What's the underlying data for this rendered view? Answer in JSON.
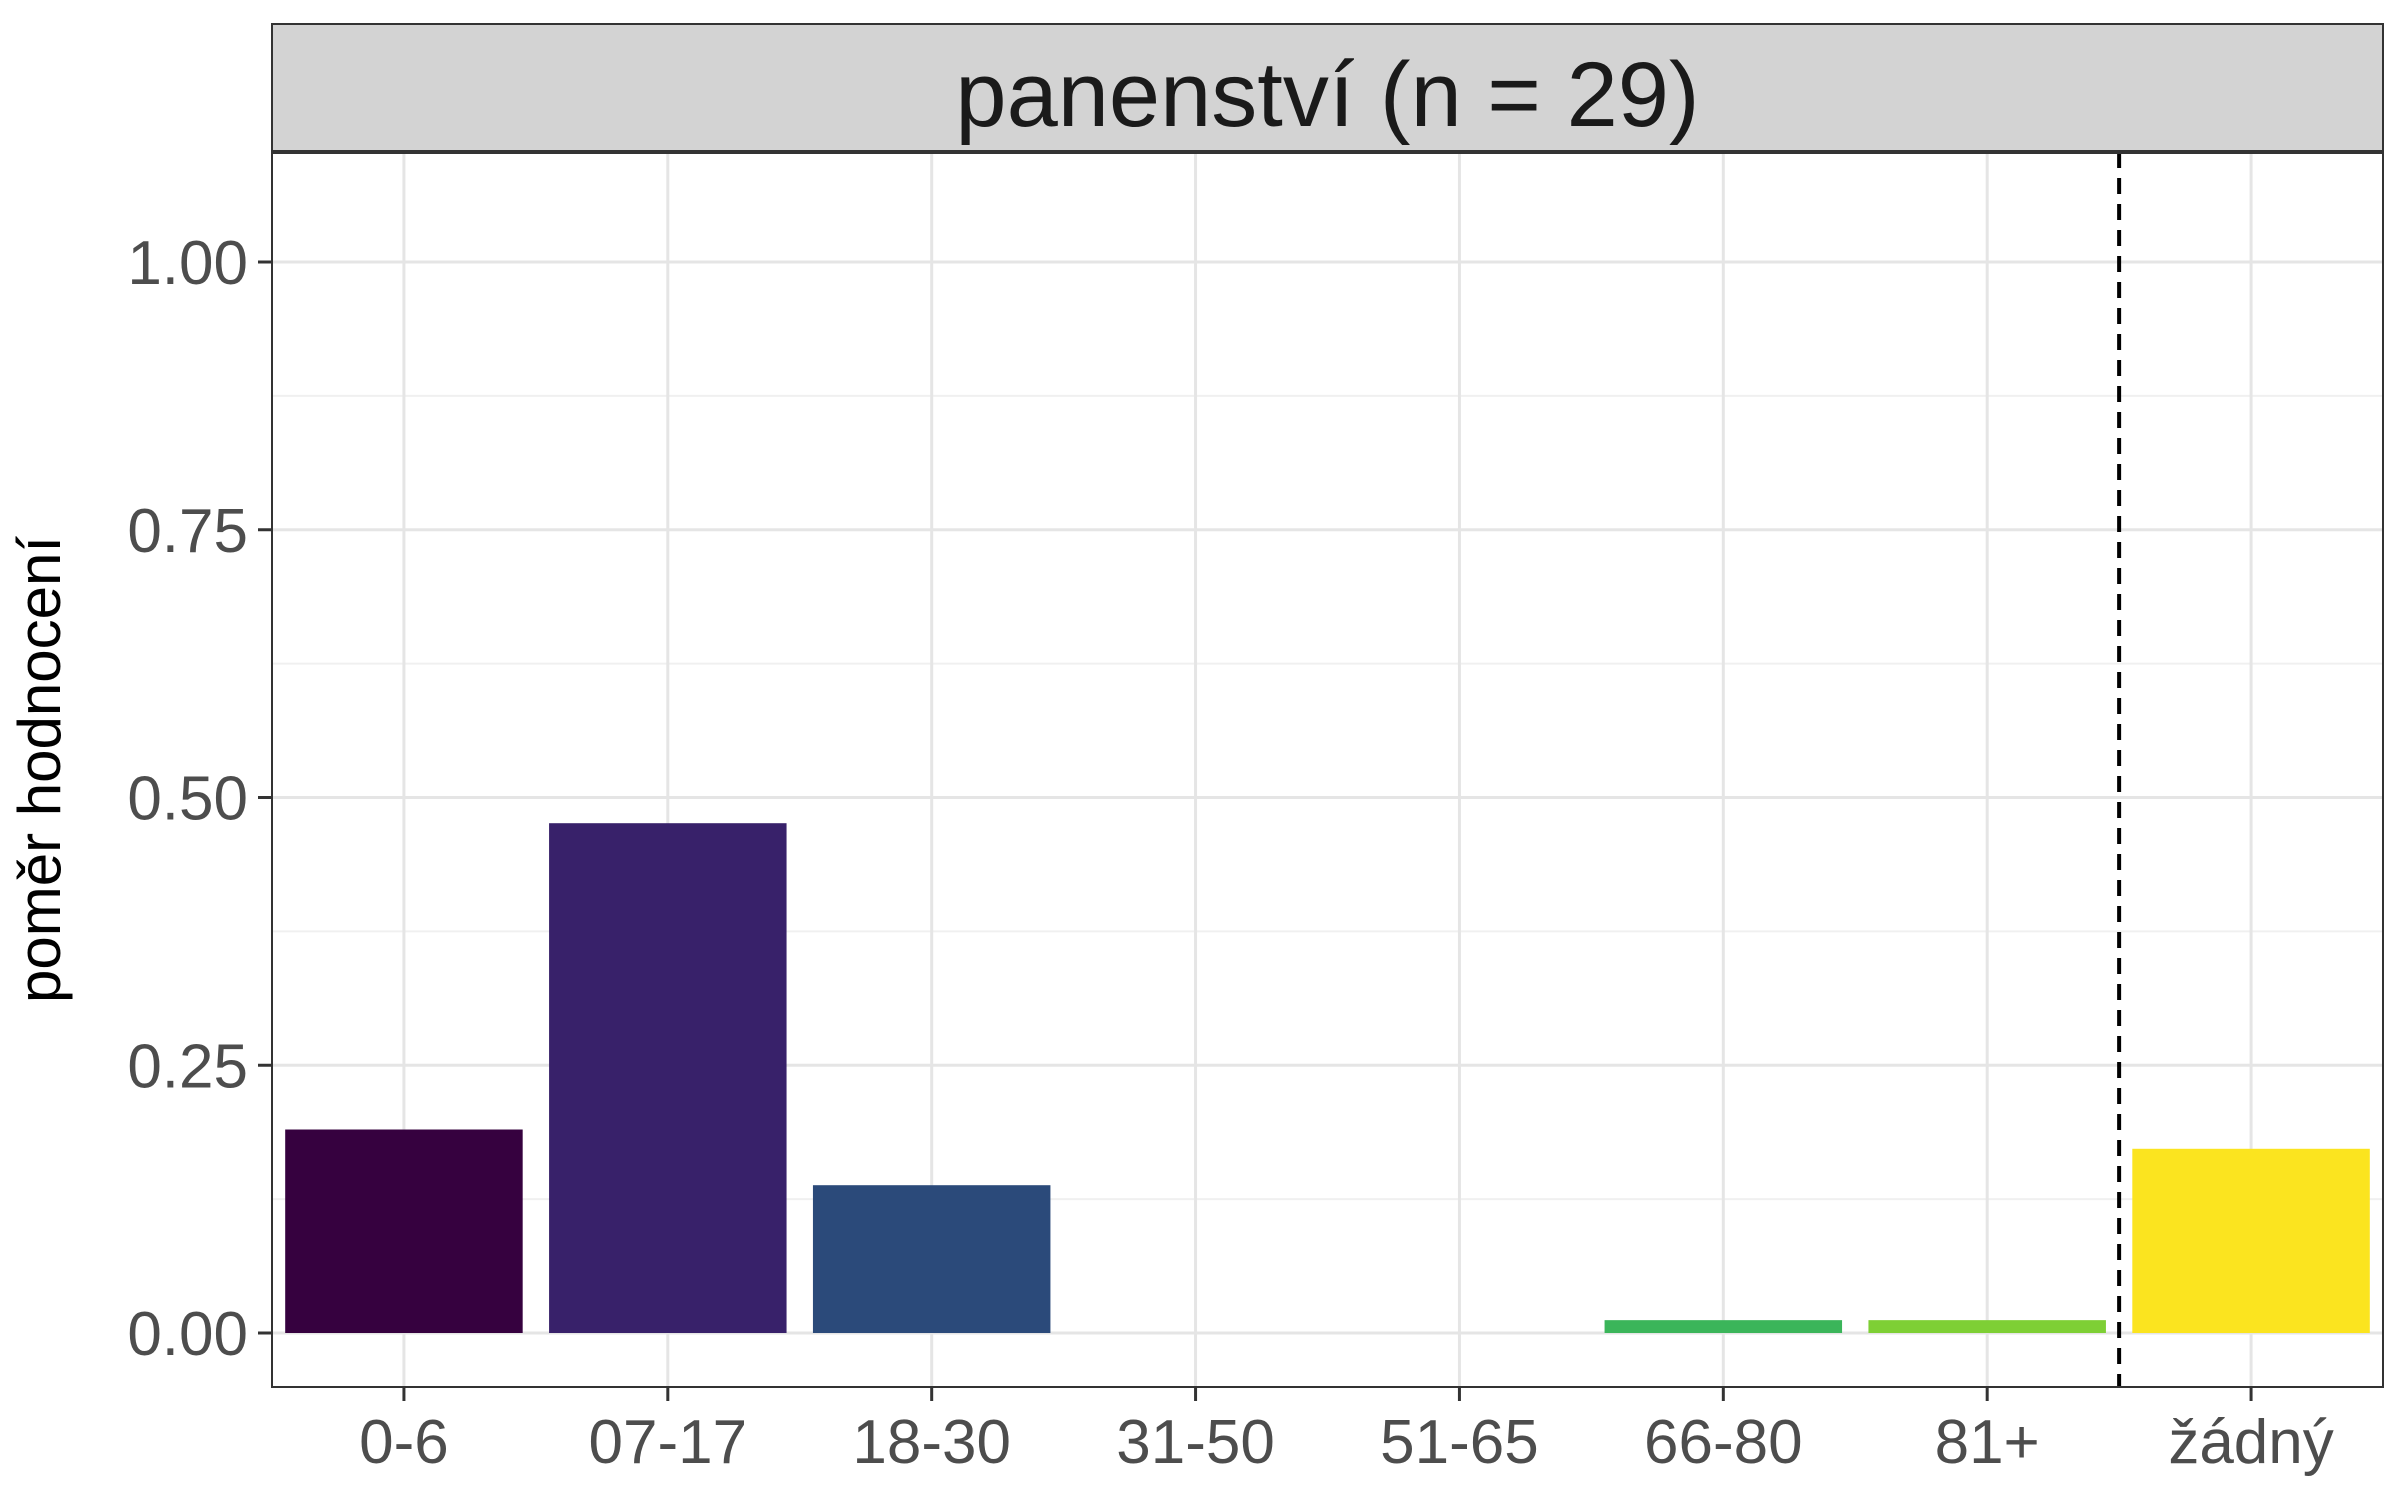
{
  "chart_data": {
    "type": "bar",
    "facet_title": "panenství (n = 29)",
    "xlabel": "",
    "ylabel": "poměr hodnocení",
    "ylim": [
      0,
      1.1
    ],
    "y_ticks": [
      "0.00",
      "0.25",
      "0.50",
      "0.75",
      "1.00"
    ],
    "y_tick_values": [
      0,
      0.25,
      0.5,
      0.75,
      1.0
    ],
    "categories": [
      "0-6",
      "07-17",
      "18-30",
      "31-50",
      "51-65",
      "66-80",
      "81+",
      "žádný"
    ],
    "values": [
      0.19,
      0.476,
      0.138,
      0.0,
      0.0,
      0.012,
      0.012,
      0.172
    ],
    "colors": [
      "#36013f",
      "#38216a",
      "#2b4a7a",
      "#21908d",
      "#2ea870",
      "#3bb55a",
      "#7ecf35",
      "#fbe41f"
    ],
    "reference_line": {
      "after_category": "81+",
      "style": "dashed",
      "color": "#000000"
    },
    "grid": true,
    "legend": "none"
  }
}
